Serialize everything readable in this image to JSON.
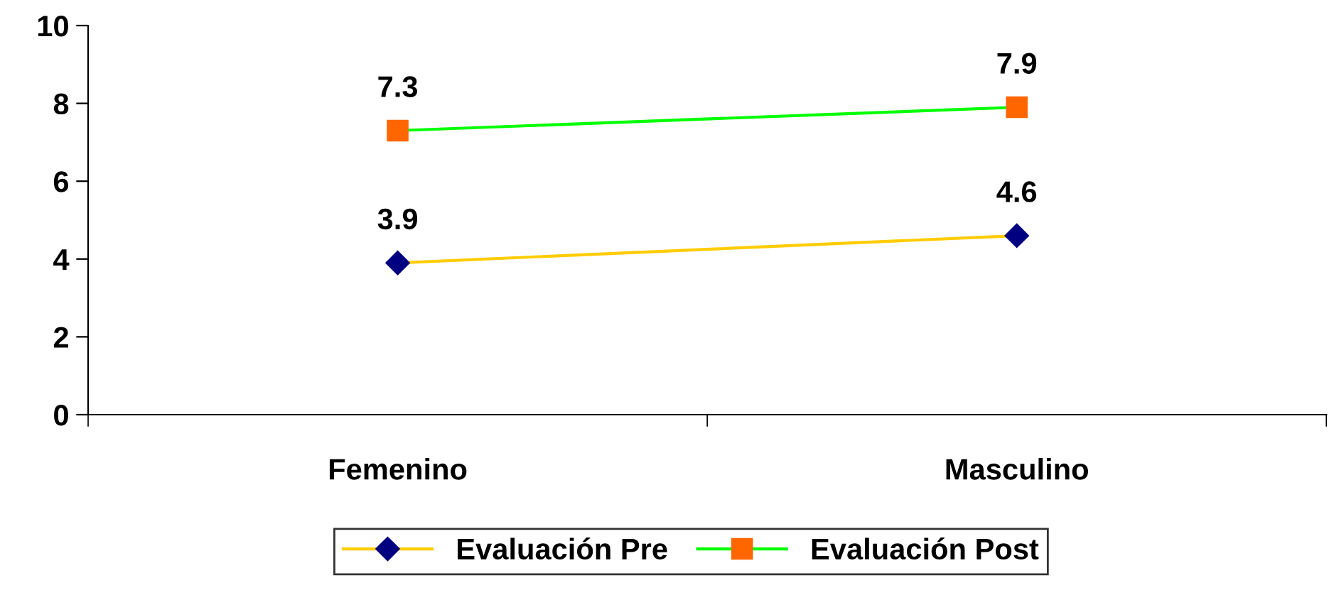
{
  "chart_data": {
    "type": "line",
    "categories": [
      "Femenino",
      "Masculino"
    ],
    "series": [
      {
        "name": "Evaluación Pre",
        "color": "#ffcc00",
        "colors": [
          "#000080",
          "#000080"
        ],
        "marker": "diamond",
        "values": [
          3.9,
          4.6
        ]
      },
      {
        "name": "Evaluación Post",
        "color": "#00ff00",
        "colors": [
          "#ff6600",
          "#ff6600"
        ],
        "marker": "square",
        "values": [
          7.3,
          7.9
        ]
      }
    ],
    "ylim": [
      0,
      10
    ],
    "yticks": [
      0,
      2,
      4,
      6,
      8,
      10
    ],
    "grid": false,
    "legend": "bottom",
    "data_labels": true
  }
}
